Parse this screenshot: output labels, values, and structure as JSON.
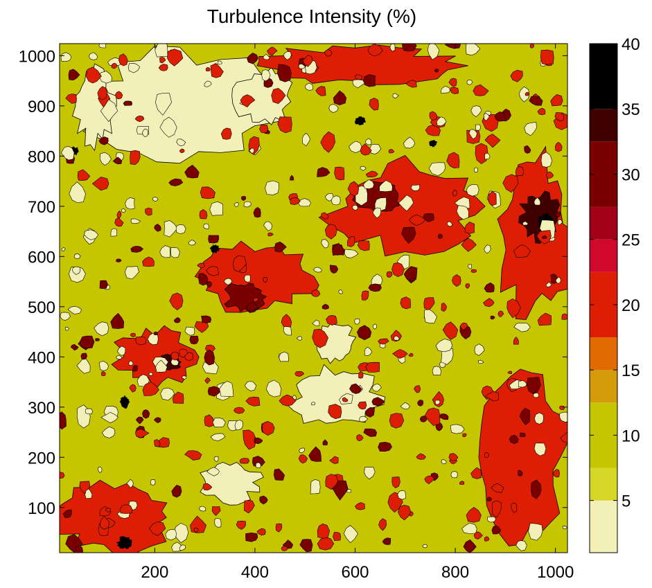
{
  "chart_data": {
    "type": "heatmap",
    "title": "Turbulence Intensity (%)",
    "xlabel": "",
    "ylabel": "",
    "xlim": [
      10,
      1024
    ],
    "ylim": [
      10,
      1024
    ],
    "xticks": [
      200,
      400,
      600,
      800,
      1000
    ],
    "yticks": [
      100,
      200,
      300,
      400,
      500,
      600,
      700,
      800,
      900,
      1000
    ],
    "grid": false,
    "colorbar": {
      "ticks": [
        5,
        10,
        15,
        20,
        25,
        30,
        35,
        40
      ],
      "levels": [
        {
          "min": 1,
          "max": 5,
          "color": "#f2f0b8"
        },
        {
          "min": 5,
          "max": 7.5,
          "color": "#d6d628"
        },
        {
          "min": 7.5,
          "max": 12.5,
          "color": "#c5c500"
        },
        {
          "min": 12.5,
          "max": 15,
          "color": "#d49a0a"
        },
        {
          "min": 15,
          "max": 17.5,
          "color": "#e06a00"
        },
        {
          "min": 17.5,
          "max": 22.5,
          "color": "#dd1e05"
        },
        {
          "min": 22.5,
          "max": 25,
          "color": "#d0082c"
        },
        {
          "min": 25,
          "max": 27.5,
          "color": "#a00018"
        },
        {
          "min": 27.5,
          "max": 32.5,
          "color": "#7a0000"
        },
        {
          "min": 32.5,
          "max": 35,
          "color": "#3f0000"
        },
        {
          "min": 35,
          "max": 40,
          "color": "#000000"
        }
      ]
    },
    "background_level_color": "#c5c500",
    "regions": [
      {
        "x": 400,
        "y": 560,
        "rx": 120,
        "ry": 70,
        "value": 20
      },
      {
        "x": 700,
        "y": 700,
        "rx": 160,
        "ry": 90,
        "value": 20
      },
      {
        "x": 960,
        "y": 640,
        "rx": 80,
        "ry": 160,
        "value": 20
      },
      {
        "x": 930,
        "y": 200,
        "rx": 90,
        "ry": 160,
        "value": 20
      },
      {
        "x": 120,
        "y": 80,
        "rx": 120,
        "ry": 70,
        "value": 20
      },
      {
        "x": 200,
        "y": 400,
        "rx": 80,
        "ry": 60,
        "value": 20
      },
      {
        "x": 600,
        "y": 980,
        "rx": 200,
        "ry": 40,
        "value": 20
      },
      {
        "x": 380,
        "y": 520,
        "rx": 40,
        "ry": 30,
        "value": 30
      },
      {
        "x": 650,
        "y": 720,
        "rx": 50,
        "ry": 30,
        "value": 30
      },
      {
        "x": 970,
        "y": 680,
        "rx": 40,
        "ry": 50,
        "value": 33
      },
      {
        "x": 230,
        "y": 390,
        "rx": 25,
        "ry": 15,
        "value": 34
      },
      {
        "x": 980,
        "y": 670,
        "rx": 15,
        "ry": 15,
        "value": 38
      },
      {
        "x": 140,
        "y": 310,
        "rx": 10,
        "ry": 12,
        "value": 38
      },
      {
        "x": 140,
        "y": 30,
        "rx": 14,
        "ry": 12,
        "value": 38
      },
      {
        "x": 610,
        "y": 870,
        "rx": 10,
        "ry": 8,
        "value": 38
      },
      {
        "x": 755,
        "y": 825,
        "rx": 8,
        "ry": 6,
        "value": 38
      },
      {
        "x": 40,
        "y": 810,
        "rx": 8,
        "ry": 8,
        "value": 38
      },
      {
        "x": 320,
        "y": 615,
        "rx": 8,
        "ry": 8,
        "value": 38
      },
      {
        "x": 250,
        "y": 900,
        "rx": 200,
        "ry": 110,
        "value": 3
      },
      {
        "x": 560,
        "y": 320,
        "rx": 90,
        "ry": 60,
        "value": 3
      },
      {
        "x": 560,
        "y": 430,
        "rx": 40,
        "ry": 40,
        "value": 3
      },
      {
        "x": 420,
        "y": 920,
        "rx": 60,
        "ry": 60,
        "value": 3
      },
      {
        "x": 80,
        "y": 900,
        "rx": 40,
        "ry": 80,
        "value": 3
      },
      {
        "x": 350,
        "y": 150,
        "rx": 60,
        "ry": 40,
        "value": 3
      }
    ]
  }
}
